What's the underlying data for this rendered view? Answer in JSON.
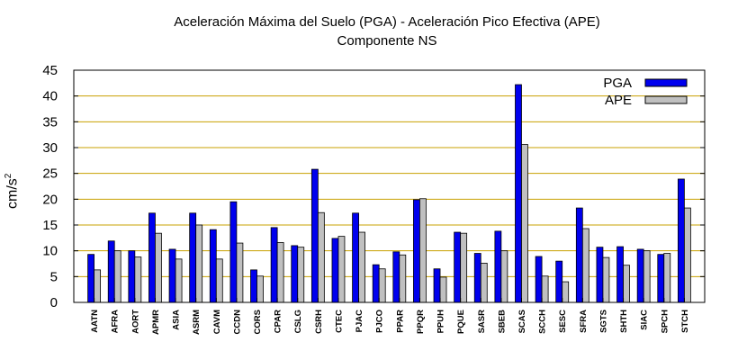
{
  "chart_data": {
    "type": "bar",
    "title": "Aceleración Máxima del Suelo (PGA) -  Aceleración Pico Efectiva (APE)",
    "subtitle": "Componente NS",
    "xlabel": "",
    "ylabel": "cm/s",
    "ylabel_superscript": "2",
    "ylim": [
      0,
      45
    ],
    "yticks": [
      0,
      5,
      10,
      15,
      20,
      25,
      30,
      35,
      40,
      45
    ],
    "grid": true,
    "legend_position": "top-right",
    "categories": [
      "AATN",
      "AFRA",
      "AORT",
      "APMR",
      "ASIA",
      "ASRM",
      "CAVM",
      "CCDN",
      "CORS",
      "CPAR",
      "CSLG",
      "CSRH",
      "CTEC",
      "PJAC",
      "PJCO",
      "PPAR",
      "PPQR",
      "PPUH",
      "PQUE",
      "SASR",
      "SBEB",
      "SCAS",
      "SCCH",
      "SESC",
      "SFRA",
      "SGTS",
      "SHTH",
      "SIAC",
      "SPCH",
      "STCH"
    ],
    "series": [
      {
        "name": "PGA",
        "color": "#0000ee",
        "values": [
          9.3,
          11.9,
          10.0,
          17.3,
          10.3,
          17.3,
          14.1,
          19.5,
          6.3,
          14.5,
          11.0,
          25.8,
          12.4,
          17.3,
          7.3,
          9.8,
          19.9,
          6.5,
          13.6,
          9.5,
          13.8,
          42.2,
          8.9,
          8.0,
          18.3,
          10.7,
          10.8,
          10.3,
          9.3,
          23.9
        ]
      },
      {
        "name": "APE",
        "color": "#c0c0c0",
        "values": [
          6.3,
          10.0,
          8.8,
          13.4,
          8.4,
          15.0,
          8.4,
          11.5,
          5.1,
          11.6,
          10.7,
          17.4,
          12.8,
          13.6,
          6.5,
          9.2,
          20.1,
          4.9,
          13.4,
          7.6,
          10.0,
          30.6,
          5.1,
          4.0,
          14.3,
          8.7,
          7.2,
          10.0,
          9.5,
          18.3
        ]
      }
    ]
  }
}
